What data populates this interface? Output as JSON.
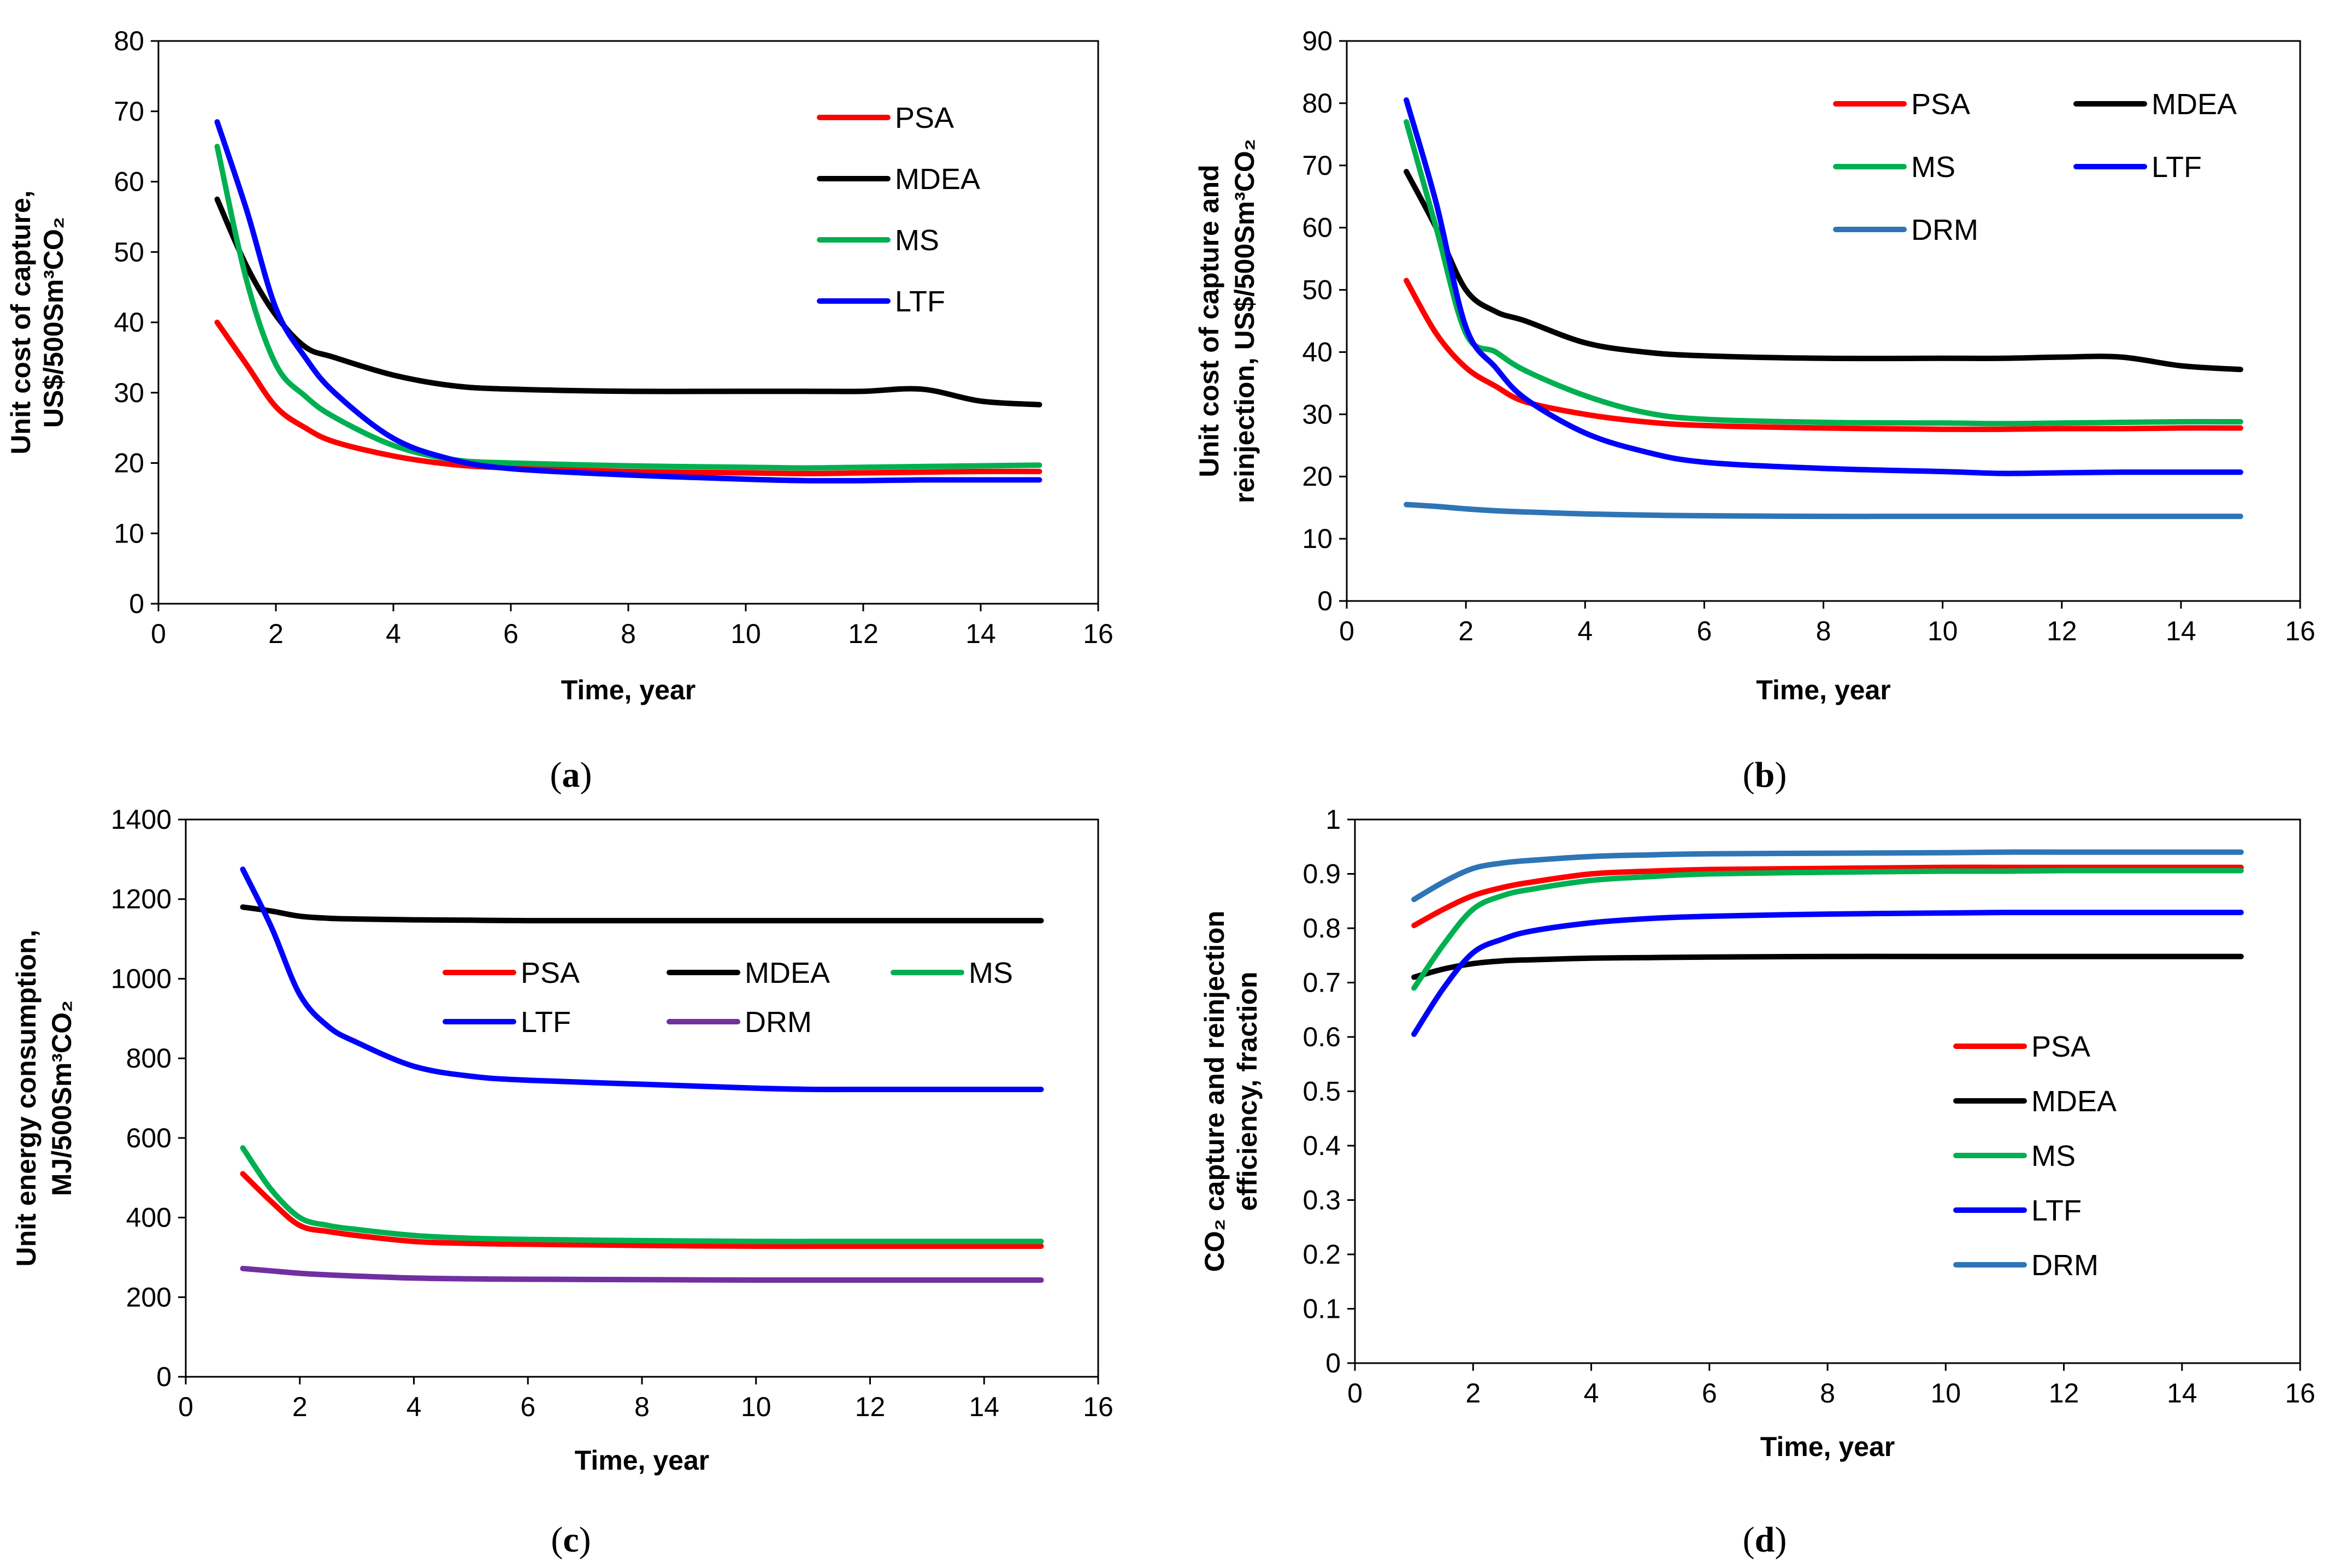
{
  "colors": {
    "PSA": "#ff0000",
    "MDEA": "#000000",
    "MS": "#00b050",
    "LTF": "#0000ff",
    "DRM": "#2e75b6",
    "DRM_c": "#7030a0"
  },
  "chart_data": [
    {
      "type": "line",
      "panel": "a",
      "caption": "(a)",
      "caption_letter": "a",
      "xlabel": "Time, year",
      "ylabel_line1": "Unit cost of capture,",
      "ylabel_line2": "US$/500Sm³CO₂",
      "xlim": [
        0,
        16
      ],
      "ylim": [
        0,
        80
      ],
      "xticks": [
        0,
        2,
        4,
        6,
        8,
        10,
        12,
        14,
        16
      ],
      "yticks": [
        0,
        10,
        20,
        30,
        40,
        50,
        60,
        70,
        80
      ],
      "legend_position": "top-right",
      "x": [
        1,
        1.5,
        2,
        2.5,
        3,
        4,
        5,
        6,
        8,
        10,
        11,
        12,
        13,
        14,
        15
      ],
      "series": [
        {
          "name": "PSA",
          "values": [
            40,
            34,
            28,
            25,
            23,
            21,
            19.8,
            19.3,
            18.8,
            18.6,
            18.5,
            18.6,
            18.7,
            18.8,
            18.8
          ]
        },
        {
          "name": "MDEA",
          "values": [
            57.5,
            48,
            41,
            36.5,
            35,
            32.5,
            31,
            30.5,
            30.2,
            30.2,
            30.2,
            30.2,
            30.5,
            28.8,
            28.3
          ]
        },
        {
          "name": "MS",
          "values": [
            65,
            46,
            34,
            29.5,
            26.5,
            22.5,
            20.5,
            20,
            19.6,
            19.4,
            19.3,
            19.4,
            19.5,
            19.6,
            19.7
          ]
        },
        {
          "name": "LTF",
          "values": [
            68.5,
            56,
            42,
            35,
            30,
            23.5,
            20.5,
            19.2,
            18.3,
            17.7,
            17.5,
            17.5,
            17.6,
            17.6,
            17.6
          ]
        }
      ]
    },
    {
      "type": "line",
      "panel": "b",
      "caption": "(b)",
      "caption_letter": "b",
      "xlabel": "Time, year",
      "ylabel_line1": "Unit cost of capture and",
      "ylabel_line2": "reinjection, US$/500Sm³CO₂",
      "xlim": [
        0,
        16
      ],
      "ylim": [
        0,
        90
      ],
      "xticks": [
        0,
        2,
        4,
        6,
        8,
        10,
        12,
        14,
        16
      ],
      "yticks": [
        0,
        10,
        20,
        30,
        40,
        50,
        60,
        70,
        80,
        90
      ],
      "legend_position": "top-right",
      "x": [
        1,
        1.5,
        2,
        2.5,
        3,
        4,
        5,
        6,
        8,
        10,
        11,
        12,
        13,
        14,
        15
      ],
      "series": [
        {
          "name": "PSA",
          "values": [
            51.5,
            43,
            37.5,
            34.5,
            32,
            30,
            28.8,
            28.2,
            27.8,
            27.6,
            27.6,
            27.7,
            27.7,
            27.8,
            27.8
          ]
        },
        {
          "name": "MDEA",
          "values": [
            69,
            60,
            50,
            46.5,
            45,
            41.5,
            40,
            39.4,
            39,
            39,
            39,
            39.2,
            39.2,
            37.8,
            37.2
          ]
        },
        {
          "name": "MS",
          "values": [
            77,
            60,
            43,
            40,
            37,
            33,
            30.3,
            29.2,
            28.7,
            28.6,
            28.5,
            28.6,
            28.7,
            28.8,
            28.8
          ]
        },
        {
          "name": "LTF",
          "values": [
            80.5,
            64,
            44,
            37.5,
            32.5,
            27,
            24,
            22.3,
            21.3,
            20.8,
            20.5,
            20.6,
            20.7,
            20.7,
            20.7
          ]
        },
        {
          "name": "DRM",
          "values": [
            15.5,
            15.2,
            14.8,
            14.5,
            14.3,
            14,
            13.8,
            13.7,
            13.6,
            13.6,
            13.6,
            13.6,
            13.6,
            13.6,
            13.6
          ]
        }
      ]
    },
    {
      "type": "line",
      "panel": "c",
      "caption": "(c)",
      "caption_letter": "c",
      "xlabel": "Time, year",
      "ylabel_line1": "Unit energy consumption,",
      "ylabel_line2": "MJ/500Sm³CO₂",
      "xlim": [
        0,
        16
      ],
      "ylim": [
        0,
        1400
      ],
      "xticks": [
        0,
        2,
        4,
        6,
        8,
        10,
        12,
        14,
        16
      ],
      "yticks": [
        0,
        200,
        400,
        600,
        800,
        1000,
        1200,
        1400
      ],
      "legend_position": "center",
      "x": [
        1,
        1.5,
        2,
        2.5,
        3,
        4,
        5,
        6,
        8,
        10,
        11,
        12,
        13,
        14,
        15
      ],
      "series": [
        {
          "name": "PSA",
          "values": [
            510,
            440,
            380,
            365,
            355,
            340,
            335,
            333,
            330,
            328,
            328,
            328,
            328,
            328,
            328
          ]
        },
        {
          "name": "MDEA",
          "values": [
            1180,
            1170,
            1157,
            1152,
            1150,
            1148,
            1147,
            1146,
            1146,
            1146,
            1146,
            1146,
            1146,
            1146,
            1146
          ]
        },
        {
          "name": "MS",
          "values": [
            575,
            470,
            400,
            380,
            370,
            355,
            348,
            345,
            342,
            340,
            340,
            340,
            340,
            340,
            340
          ]
        },
        {
          "name": "LTF",
          "values": [
            1275,
            1130,
            960,
            880,
            840,
            780,
            755,
            745,
            735,
            725,
            722,
            722,
            722,
            722,
            722
          ]
        },
        {
          "name": "DRM",
          "values": [
            272,
            266,
            260,
            256,
            253,
            248,
            246,
            245,
            244,
            243,
            243,
            243,
            243,
            243,
            243
          ]
        }
      ]
    },
    {
      "type": "line",
      "panel": "d",
      "caption": "(d)",
      "caption_letter": "d",
      "xlabel": "Time, year",
      "ylabel_line1": "CO₂ capture and reinjection",
      "ylabel_line2": "efficiency, fraction",
      "xlim": [
        0,
        16
      ],
      "ylim": [
        0,
        1
      ],
      "xticks": [
        0,
        2,
        4,
        6,
        8,
        10,
        12,
        14,
        16
      ],
      "yticks": [
        0,
        0.1,
        0.2,
        0.3,
        0.4,
        0.5,
        0.6,
        0.7,
        0.8,
        0.9,
        1
      ],
      "legend_position": "bottom-right",
      "x": [
        1,
        1.5,
        2,
        2.5,
        3,
        4,
        5,
        6,
        8,
        10,
        11,
        12,
        13,
        14,
        15
      ],
      "series": [
        {
          "name": "PSA",
          "values": [
            0.805,
            0.835,
            0.86,
            0.875,
            0.885,
            0.9,
            0.905,
            0.908,
            0.91,
            0.912,
            0.912,
            0.912,
            0.912,
            0.912,
            0.912
          ]
        },
        {
          "name": "MDEA",
          "values": [
            0.71,
            0.725,
            0.735,
            0.74,
            0.742,
            0.745,
            0.746,
            0.747,
            0.748,
            0.748,
            0.748,
            0.748,
            0.748,
            0.748,
            0.748
          ]
        },
        {
          "name": "MS",
          "values": [
            0.69,
            0.77,
            0.835,
            0.86,
            0.872,
            0.888,
            0.895,
            0.9,
            0.903,
            0.905,
            0.905,
            0.906,
            0.906,
            0.906,
            0.906
          ]
        },
        {
          "name": "LTF",
          "values": [
            0.605,
            0.69,
            0.755,
            0.78,
            0.795,
            0.81,
            0.818,
            0.822,
            0.826,
            0.828,
            0.829,
            0.829,
            0.829,
            0.829,
            0.829
          ]
        },
        {
          "name": "DRM",
          "values": [
            0.853,
            0.885,
            0.91,
            0.92,
            0.925,
            0.932,
            0.935,
            0.937,
            0.938,
            0.939,
            0.94,
            0.94,
            0.94,
            0.94,
            0.94
          ]
        }
      ]
    }
  ]
}
